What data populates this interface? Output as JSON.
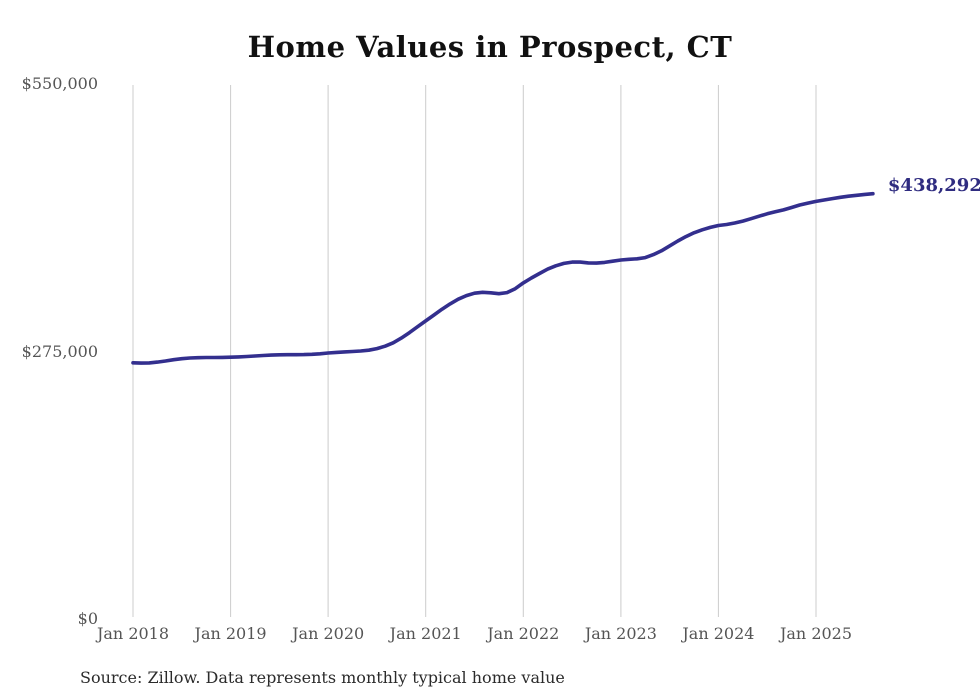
{
  "chart_data": {
    "type": "line",
    "title": "Home Values in Prospect, CT",
    "source_note": "Source: Zillow. Data represents monthly typical home value",
    "end_label": "$438,292",
    "latest_value": 438292,
    "grid": "vertical-only",
    "legend": "none",
    "ylim": [
      0,
      550000
    ],
    "y_ticks": [
      {
        "label": "$550,000",
        "value": 550000
      },
      {
        "label": "$275,000",
        "value": 275000
      },
      {
        "label": "$0",
        "value": 0
      }
    ],
    "x_ticks": [
      {
        "label": "Jan 2018",
        "month_index": 0
      },
      {
        "label": "Jan 2019",
        "month_index": 12
      },
      {
        "label": "Jan 2020",
        "month_index": 24
      },
      {
        "label": "Jan 2021",
        "month_index": 36
      },
      {
        "label": "Jan 2022",
        "month_index": 48
      },
      {
        "label": "Jan 2023",
        "month_index": 60
      },
      {
        "label": "Jan 2024",
        "month_index": 72
      },
      {
        "label": "Jan 2025",
        "month_index": 84
      }
    ],
    "series": [
      {
        "name": "Monthly typical home value",
        "start_month": "2018-01",
        "frequency": "monthly",
        "values": [
          264400,
          264100,
          264300,
          265100,
          266300,
          267600,
          268600,
          269300,
          269700,
          269900,
          269900,
          270000,
          270200,
          270500,
          270900,
          271400,
          271900,
          272300,
          272600,
          272700,
          272700,
          272800,
          273100,
          273700,
          274500,
          275100,
          275600,
          276000,
          276500,
          277400,
          279000,
          281500,
          285000,
          289800,
          295500,
          301500,
          307500,
          313500,
          319500,
          325000,
          329800,
          333500,
          336000,
          336900,
          336400,
          335500,
          336600,
          340600,
          346600,
          351600,
          356200,
          360700,
          364100,
          366600,
          367900,
          367900,
          367100,
          366900,
          367600,
          368900,
          370100,
          370800,
          371300,
          372600,
          375600,
          379600,
          384600,
          389600,
          394100,
          398100,
          401100,
          403600,
          405600,
          406600,
          408100,
          410100,
          412600,
          415100,
          417600,
          419600,
          421600,
          424100,
          426600,
          428600,
          430300,
          431800,
          433200,
          434500,
          435700,
          436600,
          437500,
          438292
        ]
      }
    ],
    "colors": {
      "line": "#332f8e",
      "grid": "#cccccc",
      "axis_text": "#555555",
      "title_text": "#111111",
      "source_text": "#2b2b2b",
      "annotation": "#2f2c80"
    }
  }
}
